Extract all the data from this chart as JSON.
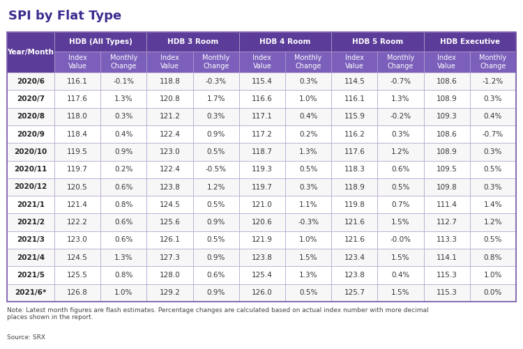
{
  "title": "SPI by Flat Type",
  "title_color": "#3d2b8e",
  "background_color": "#ffffff",
  "header_bg_color": "#5b3c99",
  "header_text_color": "#ffffff",
  "subheader_bg_color": "#7b5fbb",
  "row_colors": [
    "#f7f7f7",
    "#ffffff"
  ],
  "border_color": "#b0a0cc",
  "col_groups": [
    "Year/Month",
    "HDB (All Types)",
    "HDB 3 Room",
    "HDB 4 Room",
    "HDB 5 Room",
    "HDB Executive"
  ],
  "sub_cols": [
    "Index\nValue",
    "Monthly\nChange"
  ],
  "rows": [
    [
      "2020/6",
      "116.1",
      "-0.1%",
      "118.8",
      "-0.3%",
      "115.4",
      "0.3%",
      "114.5",
      "-0.7%",
      "108.6",
      "-1.2%"
    ],
    [
      "2020/7",
      "117.6",
      "1.3%",
      "120.8",
      "1.7%",
      "116.6",
      "1.0%",
      "116.1",
      "1.3%",
      "108.9",
      "0.3%"
    ],
    [
      "2020/8",
      "118.0",
      "0.3%",
      "121.2",
      "0.3%",
      "117.1",
      "0.4%",
      "115.9",
      "-0.2%",
      "109.3",
      "0.4%"
    ],
    [
      "2020/9",
      "118.4",
      "0.4%",
      "122.4",
      "0.9%",
      "117.2",
      "0.2%",
      "116.2",
      "0.3%",
      "108.6",
      "-0.7%"
    ],
    [
      "2020/10",
      "119.5",
      "0.9%",
      "123.0",
      "0.5%",
      "118.7",
      "1.3%",
      "117.6",
      "1.2%",
      "108.9",
      "0.3%"
    ],
    [
      "2020/11",
      "119.7",
      "0.2%",
      "122.4",
      "-0.5%",
      "119.3",
      "0.5%",
      "118.3",
      "0.6%",
      "109.5",
      "0.5%"
    ],
    [
      "2020/12",
      "120.5",
      "0.6%",
      "123.8",
      "1.2%",
      "119.7",
      "0.3%",
      "118.9",
      "0.5%",
      "109.8",
      "0.3%"
    ],
    [
      "2021/1",
      "121.4",
      "0.8%",
      "124.5",
      "0.5%",
      "121.0",
      "1.1%",
      "119.8",
      "0.7%",
      "111.4",
      "1.4%"
    ],
    [
      "2021/2",
      "122.2",
      "0.6%",
      "125.6",
      "0.9%",
      "120.6",
      "-0.3%",
      "121.6",
      "1.5%",
      "112.7",
      "1.2%"
    ],
    [
      "2021/3",
      "123.0",
      "0.6%",
      "126.1",
      "0.5%",
      "121.9",
      "1.0%",
      "121.6",
      "-0.0%",
      "113.3",
      "0.5%"
    ],
    [
      "2021/4",
      "124.5",
      "1.3%",
      "127.3",
      "0.9%",
      "123.8",
      "1.5%",
      "123.4",
      "1.5%",
      "114.1",
      "0.8%"
    ],
    [
      "2021/5",
      "125.5",
      "0.8%",
      "128.0",
      "0.6%",
      "125.4",
      "1.3%",
      "123.8",
      "0.4%",
      "115.3",
      "1.0%"
    ],
    [
      "2021/6*",
      "126.8",
      "1.0%",
      "129.2",
      "0.9%",
      "126.0",
      "0.5%",
      "125.7",
      "1.5%",
      "115.3",
      "0.0%"
    ]
  ],
  "note": "Note: Latest month figures are flash estimates. Percentage changes are calculated based on actual index number with more decimal\nplaces shown in the report.",
  "source": "Source: SRX",
  "fig_w": 7.5,
  "fig_h": 5.01,
  "dpi": 100
}
